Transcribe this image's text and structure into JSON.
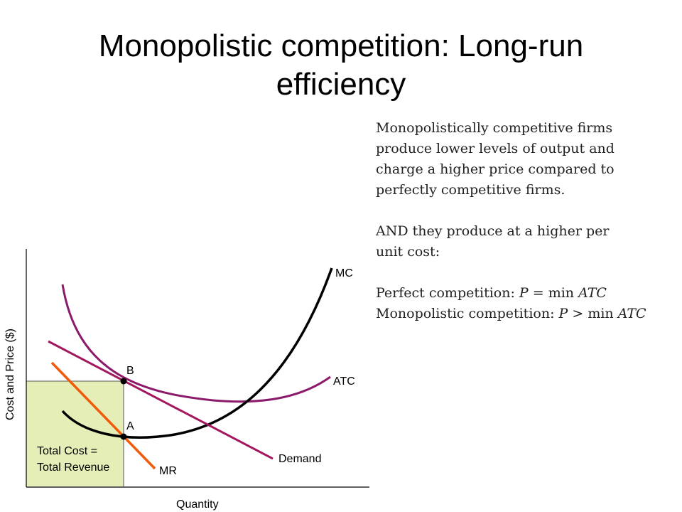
{
  "slide": {
    "title_line1": "Monopolistic competition: Long-run",
    "title_line2": "efficiency"
  },
  "notes": {
    "para1": [
      "Monopolistically competitive firms",
      "produce lower levels of output and",
      "charge a higher price compared to",
      "perfectly competitive firms."
    ],
    "para2": [
      "AND they produce at a higher per",
      "unit cost:"
    ],
    "perfect_label": "Perfect competition: ",
    "perfect_formula": {
      "lhs": "P",
      "op": " = ",
      "fn": "min ",
      "rhs": "ATC"
    },
    "mono_label": "Monopolistic competition: ",
    "mono_formula": {
      "lhs": "P",
      "op": " > ",
      "fn": "min ",
      "rhs": "ATC"
    }
  },
  "diagram": {
    "ylabel": "Cost and Price ($)",
    "xlabel": "Quantity",
    "curve_labels": {
      "mc": "MC",
      "atc": "ATC",
      "demand": "Demand",
      "mr": "MR"
    },
    "point_labels": {
      "a": "A",
      "b": "B"
    },
    "box_label_line1": "Total Cost =",
    "box_label_line2": "Total Revenue",
    "colors": {
      "mc": "#000000",
      "atc": "#8b1a6b",
      "demand": "#a3175e",
      "mr": "#f05a0a",
      "box_fill": "#e6eeb8"
    }
  }
}
